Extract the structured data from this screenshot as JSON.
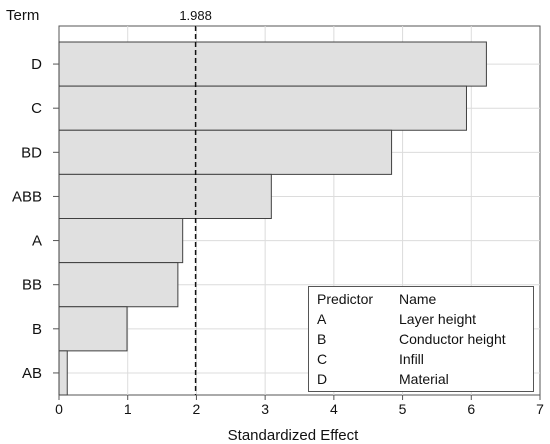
{
  "chart_data": {
    "type": "bar",
    "orientation": "horizontal",
    "y_header": "Term",
    "xlabel": "Standardized Effect",
    "categories": [
      "D",
      "C",
      "BD",
      "ABB",
      "A",
      "BB",
      "B",
      "AB"
    ],
    "values": [
      6.22,
      5.93,
      4.84,
      3.09,
      1.8,
      1.73,
      0.99,
      0.12
    ],
    "xlim": [
      0,
      7
    ],
    "xticks": [
      "0",
      "1",
      "2",
      "3",
      "4",
      "5",
      "6",
      "7"
    ],
    "reference_line": {
      "value": 1.988,
      "label": "1.988"
    },
    "grid": true,
    "bar_color": "#e0e0e0",
    "bar_edge_color": "#404040",
    "grid_color": "#dcdcdc",
    "legend": {
      "placement": "bottom-right",
      "header": [
        "Predictor",
        "Name"
      ],
      "rows": [
        [
          "A",
          "Layer height"
        ],
        [
          "B",
          "Conductor height"
        ],
        [
          "C",
          "Infill"
        ],
        [
          "D",
          "Material"
        ]
      ]
    }
  }
}
